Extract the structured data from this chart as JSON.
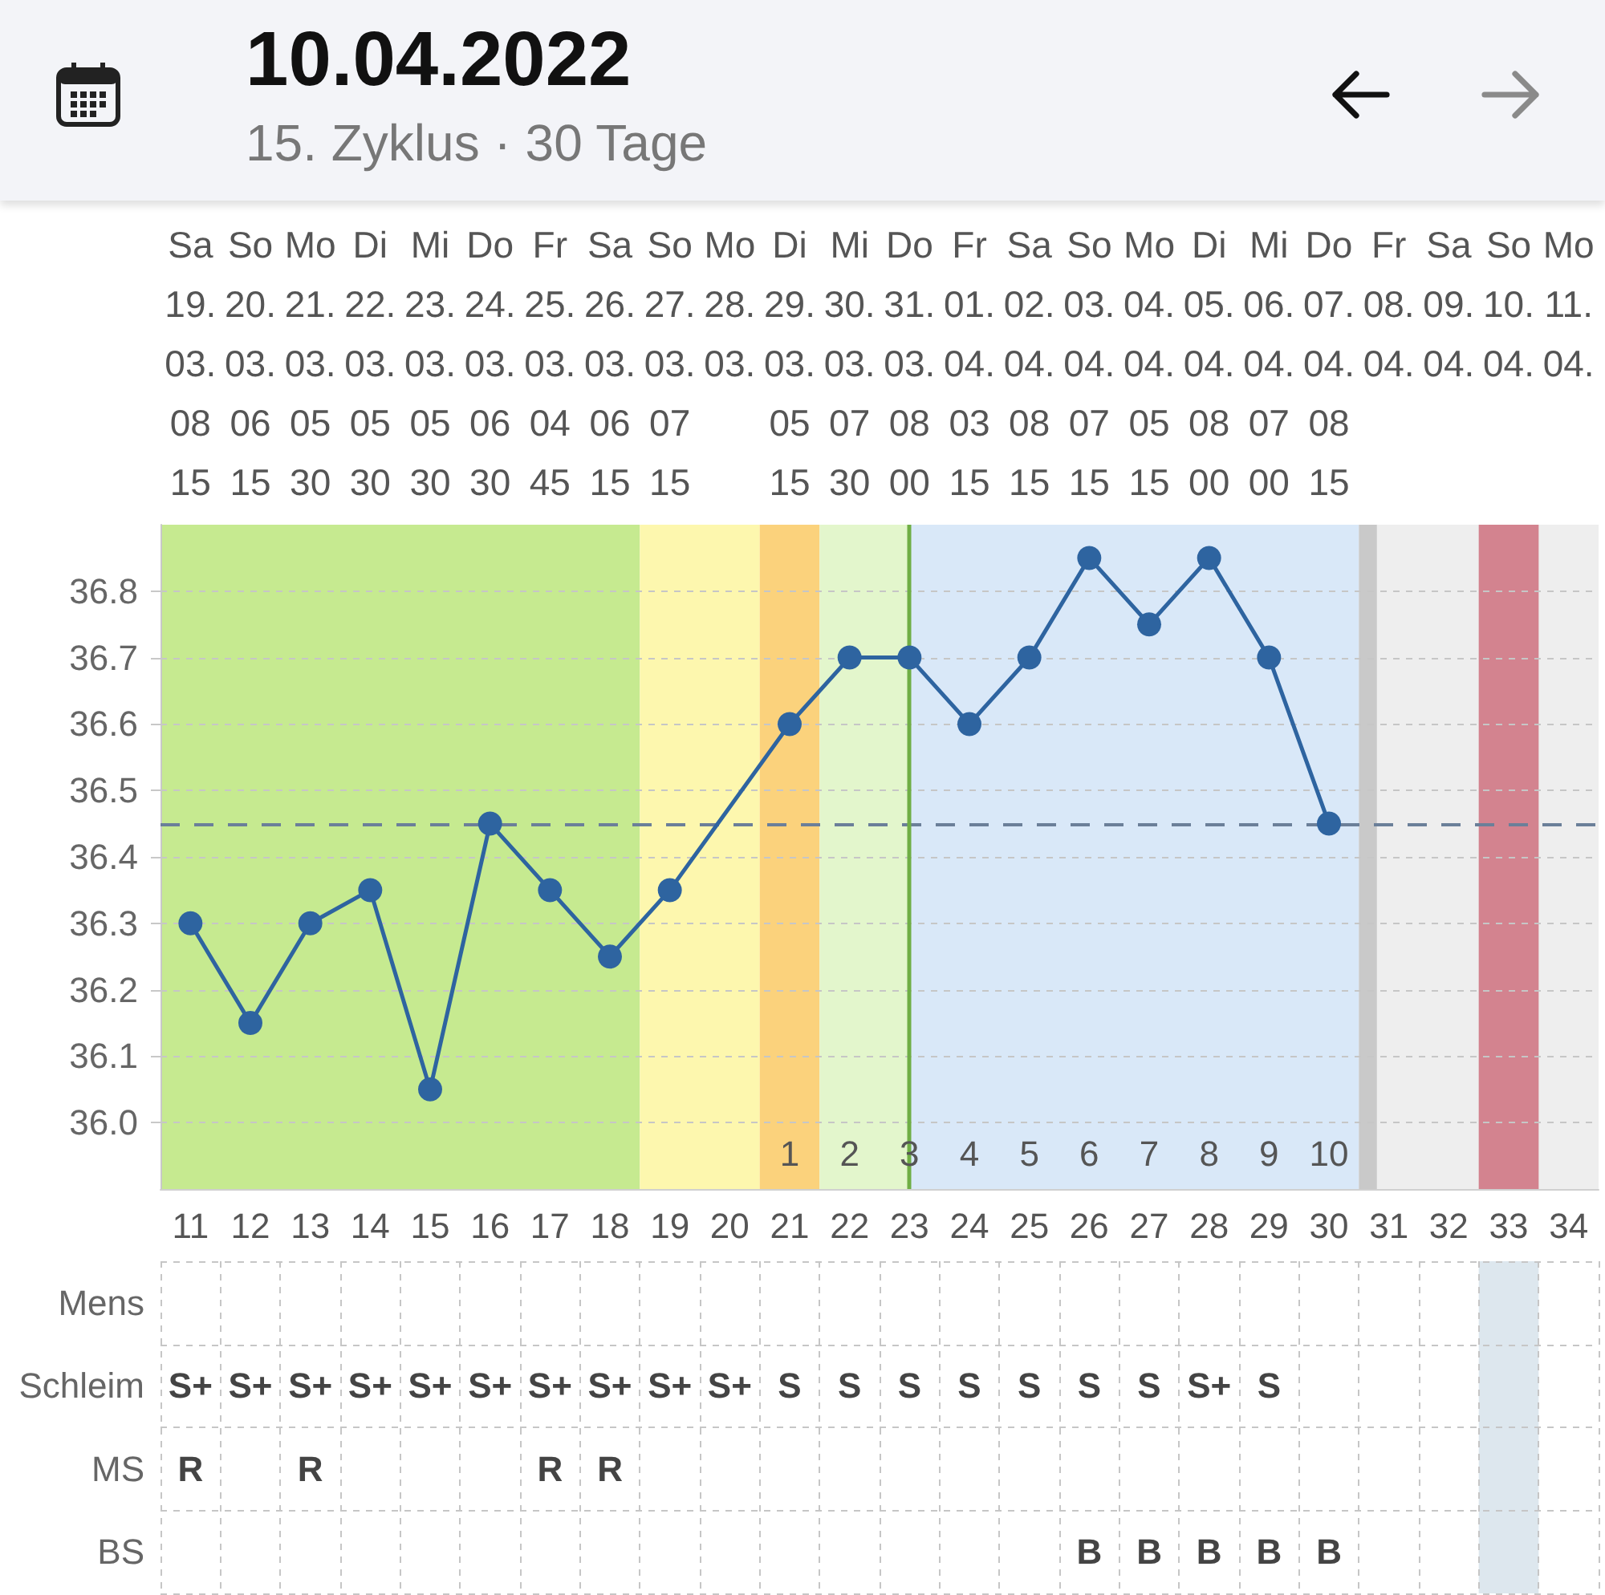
{
  "chart_data": [
    {
      "type": "line",
      "title": "10.04.2022",
      "subtitle": "15. Zyklus · 30 Tage",
      "x": [
        11,
        12,
        13,
        14,
        15,
        16,
        17,
        18,
        19,
        20,
        21,
        22,
        23,
        24,
        25,
        26,
        27,
        28,
        29,
        30
      ],
      "values": [
        36.3,
        36.15,
        36.3,
        36.35,
        36.05,
        36.45,
        36.35,
        36.25,
        36.35,
        null,
        36.6,
        36.7,
        36.7,
        36.6,
        36.7,
        36.85,
        36.75,
        36.85,
        36.7,
        36.45
      ],
      "color": "#2e64a0",
      "marker": "circle",
      "line_style": "solid",
      "xlim": [
        10.5,
        34.5
      ],
      "xticks": [
        11,
        12,
        13,
        14,
        15,
        16,
        17,
        18,
        19,
        20,
        21,
        22,
        23,
        24,
        25,
        26,
        27,
        28,
        29,
        30,
        31,
        32,
        33,
        34
      ],
      "x2lim": [
        "2022-03-18T12:00",
        "2022-04-11T12:00"
      ],
      "x2ticks": [
        {
          "value": "2022-03-19",
          "label": "Sa 19. 03. 08 15"
        },
        {
          "value": "2022-03-20",
          "label": "So 20. 03. 06 15"
        },
        {
          "value": "2022-03-21",
          "label": "Mo 21. 03. 05 30"
        },
        {
          "value": "2022-03-22",
          "label": "Di 22. 03. 05 30"
        },
        {
          "value": "2022-03-23",
          "label": "Mi 23. 03. 05 30"
        },
        {
          "value": "2022-03-24",
          "label": "Do 24. 03. 06 30"
        },
        {
          "value": "2022-03-25",
          "label": "Fr 25. 03. 04 45"
        },
        {
          "value": "2022-03-26",
          "label": "Sa 26. 03. 06 15"
        },
        {
          "value": "2022-03-27",
          "label": "So 27. 03. 07 15"
        },
        {
          "value": "2022-03-28",
          "label": "Mo 28. 03."
        },
        {
          "value": "2022-03-29",
          "label": "Di 29. 03. 05 15"
        },
        {
          "value": "2022-03-30",
          "label": "Mi 30. 03. 07 30"
        },
        {
          "value": "2022-03-31",
          "label": "Do 31. 03. 08 00"
        },
        {
          "value": "2022-04-01",
          "label": "Fr 01. 04. 03 15"
        },
        {
          "value": "2022-04-02",
          "label": "Sa 02. 04. 08 15"
        },
        {
          "value": "2022-04-03",
          "label": "So 03. 04. 07 15"
        },
        {
          "value": "2022-04-04",
          "label": "Mo 04. 04. 05 15"
        },
        {
          "value": "2022-04-05",
          "label": "Di 05. 04. 08 00"
        },
        {
          "value": "2022-04-06",
          "label": "Mi 06. 04. 07 00"
        },
        {
          "value": "2022-04-07",
          "label": "Do 07. 04. 08 15"
        },
        {
          "value": "2022-04-08",
          "label": "Fr 08. 04."
        },
        {
          "value": "2022-04-09",
          "label": "Sa 09. 04."
        },
        {
          "value": "2022-04-10",
          "label": "So 10. 04."
        },
        {
          "value": "2022-04-11",
          "label": "Mo 11. 04."
        }
      ],
      "ylim": [
        35.9,
        36.9
      ],
      "yticks": [
        {
          "value": 36,
          "label": "36.0"
        },
        36.1,
        36.2,
        36.3,
        36.4,
        36.5,
        36.6,
        36.7,
        36.8
      ],
      "grid": "y",
      "ref_lines": [
        {
          "axis": "y",
          "value": 36.45,
          "color": "#6b7f99",
          "line_style": "dashed"
        },
        {
          "axis": "x",
          "value": 23,
          "color": "#6fae45",
          "line_style": "solid"
        }
      ],
      "bands": [
        {
          "axis": "x",
          "from": 10.5,
          "to": 18.5,
          "color": "#c6ea90"
        },
        {
          "axis": "x",
          "from": 18.5,
          "to": 20.5,
          "color": "#fdf7ae"
        },
        {
          "axis": "x",
          "from": 20.5,
          "to": 21.5,
          "color": "#fbd27c"
        },
        {
          "axis": "x",
          "from": 21.5,
          "to": 23,
          "color": "#e3f6cc"
        },
        {
          "axis": "x",
          "from": 23,
          "to": 30.5,
          "color": "#d9e8f8"
        },
        {
          "axis": "x",
          "from": 30.5,
          "to": 34.5,
          "color": "#eeeeee"
        },
        {
          "axis": "x",
          "from": 30.5,
          "to": 30.8,
          "color": "#c9c9c9"
        },
        {
          "axis": "x",
          "from": 32.5,
          "to": 33.5,
          "color": "#d3838f"
        }
      ],
      "annotations": [
        "1",
        "2",
        "3",
        "4",
        "5",
        "6",
        "7",
        "8",
        "9",
        "10"
      ]
    },
    {
      "type": "heatmap",
      "categories": [
        "11",
        "12",
        "13",
        "14",
        "15",
        "16",
        "17",
        "18",
        "19",
        "20",
        "21",
        "22",
        "23",
        "24",
        "25",
        "26",
        "27",
        "28",
        "29",
        "30",
        "31",
        "32",
        "33",
        "34"
      ],
      "y_categories": [
        "Mens",
        "Schleim",
        "MS",
        "BS"
      ],
      "cells": [
        [
          null,
          null,
          null,
          null,
          null,
          null,
          null,
          null,
          null,
          null,
          null,
          null,
          null,
          null,
          null,
          null,
          null,
          null,
          null,
          null,
          null,
          null,
          null,
          null
        ],
        [
          null,
          null,
          null,
          null,
          null,
          null,
          null,
          null,
          null,
          null,
          null,
          null,
          null,
          null,
          null,
          null,
          null,
          null,
          null,
          null,
          null,
          null,
          null,
          null
        ],
        [
          null,
          null,
          null,
          null,
          null,
          null,
          null,
          null,
          null,
          null,
          null,
          null,
          null,
          null,
          null,
          null,
          null,
          null,
          null,
          null,
          null,
          null,
          null,
          null
        ],
        [
          null,
          null,
          null,
          null,
          null,
          null,
          null,
          null,
          null,
          null,
          null,
          null,
          null,
          null,
          null,
          null,
          null,
          null,
          null,
          null,
          null,
          null,
          null,
          null
        ]
      ],
      "cell_labels": [
        [
          null,
          null,
          null,
          null,
          null,
          null,
          null,
          null,
          null,
          null,
          null,
          null,
          null,
          null,
          null,
          null,
          null,
          null,
          null,
          null,
          null,
          null,
          null,
          null
        ],
        [
          "S+",
          "S+",
          "S+",
          "S+",
          "S+",
          "S+",
          "S+",
          "S+",
          "S+",
          "S+",
          "S",
          "S",
          "S",
          "S",
          "S",
          "S",
          "S",
          "S+",
          "S",
          null,
          null,
          null,
          null,
          null
        ],
        [
          "R",
          null,
          "R",
          null,
          null,
          null,
          "R",
          "R",
          null,
          null,
          null,
          null,
          null,
          null,
          null,
          null,
          null,
          null,
          null,
          null,
          null,
          null,
          null,
          null
        ],
        [
          null,
          null,
          null,
          null,
          null,
          null,
          null,
          null,
          null,
          null,
          null,
          null,
          null,
          null,
          null,
          "B",
          "B",
          "B",
          "B",
          "B",
          null,
          null,
          null,
          null
        ]
      ],
      "bands": [
        {
          "axis": "x",
          "from": "33",
          "to": "33",
          "color": "#dde7ee"
        }
      ],
      "grid": true,
      "tick_labels": "y"
    }
  ]
}
